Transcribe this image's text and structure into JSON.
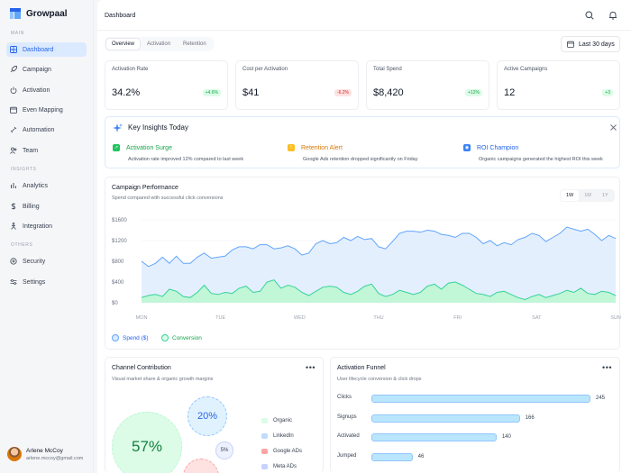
{
  "app": {
    "name": "Growpaal"
  },
  "sidebar": {
    "sections": [
      "MAIN",
      "INSIGHTS",
      "OTHERS"
    ],
    "items": [
      {
        "label": "Dashboard",
        "icon": "grid-icon",
        "active": true
      },
      {
        "label": "Campaign",
        "icon": "rocket-icon"
      },
      {
        "label": "Activation",
        "icon": "power-icon"
      },
      {
        "label": "Even Mapping",
        "icon": "calendar-icon"
      },
      {
        "label": "Automation",
        "icon": "link-icon"
      },
      {
        "label": "Team",
        "icon": "team-icon"
      },
      {
        "label": "Analytics",
        "icon": "bar-chart-icon"
      },
      {
        "label": "Billing",
        "icon": "dollar-icon"
      },
      {
        "label": "Integration",
        "icon": "plug-icon"
      },
      {
        "label": "Security",
        "icon": "shield-icon"
      },
      {
        "label": "Settings",
        "icon": "sliders-icon"
      }
    ],
    "user": {
      "name": "Arlene McCoy",
      "email": "arlene.mccoy@gmail.com"
    }
  },
  "header": {
    "breadcrumb": "Dashboard"
  },
  "tabs": [
    "Overview",
    "Activation",
    "Retention"
  ],
  "date_range": "Last 30 days",
  "kpis": [
    {
      "title": "Activation Rate",
      "value": "34.2%",
      "delta": "+4.6%",
      "trend": "up"
    },
    {
      "title": "Cost per Activation",
      "value": "$41",
      "delta": "-6.2%",
      "trend": "down"
    },
    {
      "title": "Total Spend",
      "value": "$8,420",
      "delta": "+12%",
      "trend": "up"
    },
    {
      "title": "Active Campaigns",
      "value": "12",
      "delta": "+3",
      "trend": "up"
    }
  ],
  "insights": {
    "title": "Key Insights Today",
    "items": [
      {
        "title": "Activation Surge",
        "desc": "Activation rate improved 12% compared to last week",
        "color": "#16a34a"
      },
      {
        "title": "Retention Alert",
        "desc": "Google Ads retention dropped significantly on Friday",
        "color": "#d97706"
      },
      {
        "title": "ROI Champion",
        "desc": "Organic campaigns generated the highest ROI this week",
        "color": "#2563eb"
      }
    ]
  },
  "performance": {
    "title": "Campaign Performance",
    "subtitle": "Spend compared with successful click conversions",
    "ranges": [
      "1W",
      "1M",
      "1Y"
    ],
    "active_range": "1W",
    "legend": [
      "Spend ($)",
      "Conversion"
    ]
  },
  "chart_data": {
    "type": "area",
    "x_ticks": [
      "MON",
      "TUE",
      "WED",
      "THU",
      "FRI",
      "SAT",
      "SUN"
    ],
    "y_ticks": [
      "$1600",
      "$1200",
      "$800",
      "$400",
      "$0"
    ],
    "ylim": [
      0,
      1600
    ],
    "series": [
      {
        "name": "Spend ($)",
        "color": "#60a5fa",
        "values": [
          800,
          700,
          760,
          880,
          760,
          900,
          760,
          760,
          880,
          960,
          860,
          880,
          900,
          1020,
          1080,
          1080,
          1040,
          1120,
          1120,
          1040,
          1060,
          1100,
          1040,
          920,
          960,
          1140,
          1200,
          1140,
          1160,
          1260,
          1200,
          1280,
          1220,
          1240,
          1080,
          1040,
          1180,
          1340,
          1380,
          1380,
          1360,
          1400,
          1380,
          1320,
          1300,
          1260,
          1340,
          1340,
          1260,
          1140,
          1200,
          1100,
          1160,
          1120,
          1220,
          1260,
          1340,
          1300,
          1180,
          1260,
          1340,
          1460,
          1420,
          1380,
          1420,
          1320,
          1200,
          1300,
          1240
        ]
      },
      {
        "name": "Conversion",
        "color": "#34d399",
        "values": [
          100,
          140,
          160,
          120,
          260,
          220,
          120,
          100,
          200,
          340,
          180,
          160,
          200,
          180,
          280,
          320,
          200,
          220,
          400,
          440,
          280,
          340,
          300,
          200,
          140,
          220,
          300,
          320,
          300,
          200,
          160,
          220,
          320,
          360,
          180,
          120,
          160,
          240,
          200,
          160,
          200,
          320,
          360,
          260,
          380,
          400,
          340,
          260,
          180,
          160,
          120,
          200,
          220,
          160,
          100,
          60,
          120,
          160,
          100,
          140,
          180,
          240,
          200,
          280,
          180,
          160,
          220,
          200,
          140
        ]
      }
    ]
  },
  "channel": {
    "title": "Channel Contribution",
    "subtitle": "Visual market share & organic growth margins",
    "bubbles": [
      "57%",
      "20%",
      "5%"
    ],
    "legend": [
      {
        "label": "Organic",
        "color": "#dcfce7"
      },
      {
        "label": "LinkedIn",
        "color": "#bfdbfe"
      },
      {
        "label": "Google ADs",
        "color": "#fca5a5"
      },
      {
        "label": "Meta ADs",
        "color": "#c7d2fe"
      }
    ]
  },
  "funnel": {
    "title": "Activation Funnel",
    "subtitle": "User lifecycle conversion & click drops",
    "stages": [
      {
        "label": "Clicks",
        "value": 245
      },
      {
        "label": "Signups",
        "value": 166
      },
      {
        "label": "Activated",
        "value": 140
      },
      {
        "label": "Jumped",
        "value": 46
      }
    ]
  }
}
